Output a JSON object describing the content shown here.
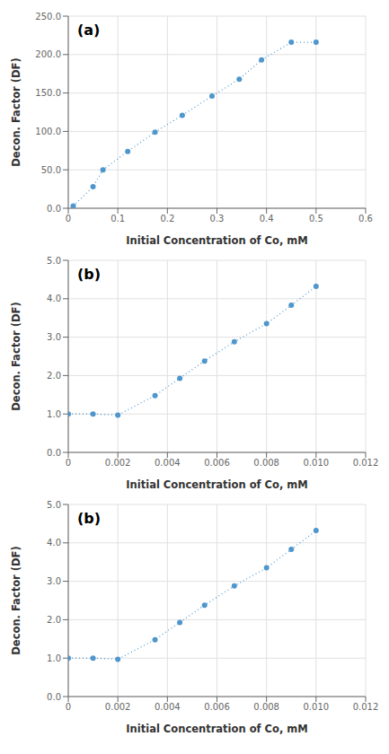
{
  "chart_data": [
    {
      "type": "line",
      "annotations": [
        "(a)"
      ],
      "xlabel": "Initial Concentration of Co, mM",
      "ylabel": "Decon. Factor (DF)",
      "x": [
        0.01,
        0.05,
        0.07,
        0.12,
        0.175,
        0.23,
        0.29,
        0.345,
        0.39,
        0.45,
        0.5
      ],
      "values": [
        3.0,
        28.0,
        50.0,
        74.0,
        99.0,
        121.0,
        146.0,
        168.0,
        193.0,
        216.0,
        216.0
      ],
      "color": "#4e96cc",
      "marker": "circle",
      "line_style": "dotted",
      "grid": true,
      "xlim": [
        0,
        0.6
      ],
      "ylim": [
        0,
        250
      ],
      "xticks": [
        0,
        0.1,
        0.2,
        0.3,
        0.4,
        0.5,
        0.6
      ],
      "yticks": [
        {
          "value": 0,
          "label": "0.0"
        },
        {
          "value": 50,
          "label": "50.0"
        },
        {
          "value": 100,
          "label": "100.0"
        },
        {
          "value": 150,
          "label": "150.0"
        },
        {
          "value": 200,
          "label": "200.0"
        },
        {
          "value": 250,
          "label": "250.0"
        }
      ]
    },
    {
      "type": "line",
      "annotations": [
        "(b)"
      ],
      "xlabel": "Initial Concentration of Co, mM",
      "ylabel": "Decon. Factor (DF)",
      "x": [
        0.0,
        0.001,
        0.002,
        0.0035,
        0.0045,
        0.0055,
        0.0067,
        0.008,
        0.009,
        0.01
      ],
      "values": [
        1.0,
        1.0,
        0.97,
        1.48,
        1.93,
        2.38,
        2.88,
        3.35,
        3.83,
        4.32
      ],
      "color": "#4e96cc",
      "marker": "circle",
      "line_style": "dotted",
      "grid": true,
      "xlim": [
        0,
        0.012
      ],
      "ylim": [
        0,
        5.0
      ],
      "xticks": [
        0,
        0.002,
        0.004,
        0.006,
        0.008,
        {
          "value": 0.01,
          "label": "0.010"
        },
        0.012
      ],
      "yticks": [
        {
          "value": 0,
          "label": "0.0"
        },
        {
          "value": 1,
          "label": "1.0"
        },
        {
          "value": 2,
          "label": "2.0"
        },
        {
          "value": 3,
          "label": "3.0"
        },
        {
          "value": 4,
          "label": "4.0"
        },
        {
          "value": 5,
          "label": "5.0"
        }
      ]
    },
    {
      "type": "line",
      "annotations": [
        "(b)"
      ],
      "xlabel": "Initial Concentration of Co, mM",
      "ylabel": "Decon. Factor (DF)",
      "x": [
        0.0,
        0.001,
        0.002,
        0.0035,
        0.0045,
        0.0055,
        0.0067,
        0.008,
        0.009,
        0.01
      ],
      "values": [
        1.0,
        1.0,
        0.97,
        1.48,
        1.93,
        2.38,
        2.88,
        3.35,
        3.83,
        4.32
      ],
      "color": "#4e96cc",
      "marker": "circle",
      "line_style": "dotted",
      "grid": true,
      "xlim": [
        0,
        0.012
      ],
      "ylim": [
        0,
        5.0
      ],
      "xticks": [
        0,
        0.002,
        0.004,
        0.006,
        0.008,
        {
          "value": 0.01,
          "label": "0.010"
        },
        0.012
      ],
      "yticks": [
        {
          "value": 0,
          "label": "0.0"
        },
        {
          "value": 1,
          "label": "1.0"
        },
        {
          "value": 2,
          "label": "2.0"
        },
        {
          "value": 3,
          "label": "3.0"
        },
        {
          "value": 4,
          "label": "4.0"
        },
        {
          "value": 5,
          "label": "5.0"
        }
      ]
    }
  ]
}
